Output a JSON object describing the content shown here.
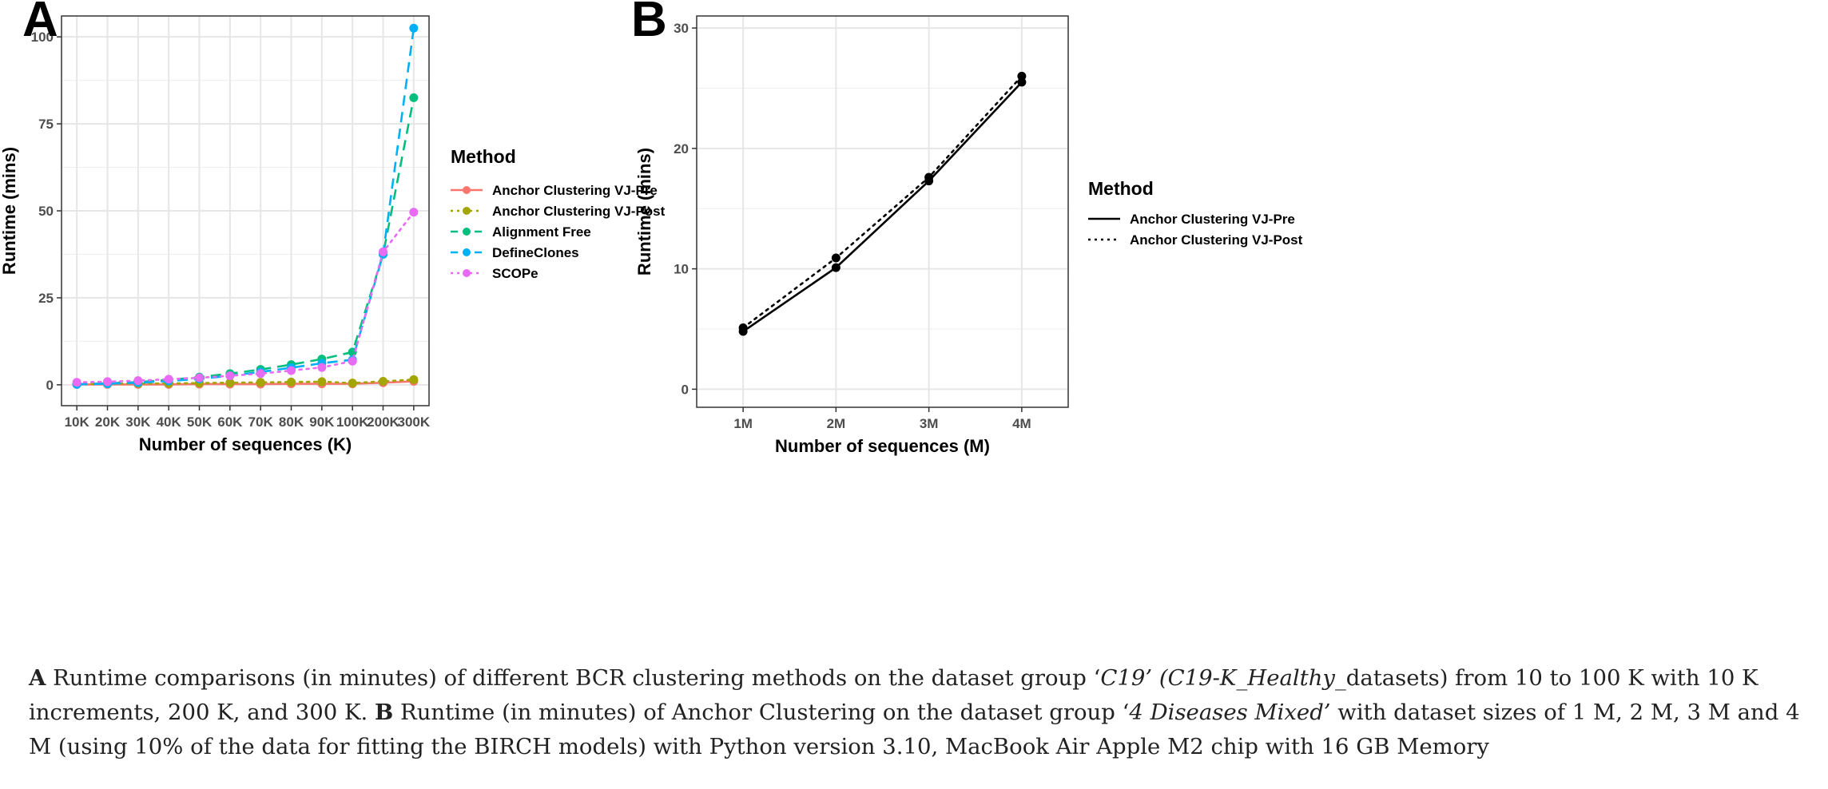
{
  "chart_data": [
    {
      "panel": "A",
      "type": "line",
      "xlabel": "Number of sequences (K)",
      "ylabel": "Runtime (mins)",
      "categories": [
        "10K",
        "20K",
        "30K",
        "40K",
        "50K",
        "60K",
        "70K",
        "80K",
        "90K",
        "100K",
        "200K",
        "300K"
      ],
      "ylim": [
        -6,
        106
      ],
      "yticks": [
        0,
        25,
        50,
        75,
        100
      ],
      "grid": true,
      "legend": {
        "title": "Method",
        "position": "right"
      },
      "series": [
        {
          "name": "Anchor Clustering VJ-Pre",
          "color": "#F8766D",
          "dash": "solid",
          "values": [
            0.1,
            0.1,
            0.1,
            0.1,
            0.2,
            0.2,
            0.2,
            0.3,
            0.3,
            0.3,
            0.6,
            1.0
          ]
        },
        {
          "name": "Anchor Clustering VJ-Post",
          "color": "#A3A500",
          "dash": "dotted",
          "values": [
            0.2,
            0.3,
            0.4,
            0.4,
            0.5,
            0.6,
            0.7,
            0.8,
            0.9,
            0.5,
            1.0,
            1.5
          ]
        },
        {
          "name": "Alignment Free",
          "color": "#00BF7D",
          "dash": "dashed",
          "values": [
            0.2,
            0.4,
            0.8,
            1.4,
            2.2,
            3.2,
            4.4,
            5.8,
            7.4,
            9.4,
            37.5,
            82.5
          ]
        },
        {
          "name": "DefineClones",
          "color": "#00B0F6",
          "dash": "dashed",
          "values": [
            0.1,
            0.3,
            0.6,
            1.1,
            1.7,
            2.6,
            3.7,
            4.9,
            6.2,
            7.2,
            37.5,
            102.5
          ]
        },
        {
          "name": "SCOPe",
          "color": "#E76BF3",
          "dash": "dotted",
          "values": [
            0.7,
            0.9,
            1.2,
            1.6,
            2.0,
            2.6,
            3.2,
            4.1,
            5.0,
            6.8,
            38.2,
            49.6
          ]
        }
      ]
    },
    {
      "panel": "B",
      "type": "line",
      "xlabel": "Number of sequences (M)",
      "ylabel": "Runtime (mins)",
      "categories": [
        "1M",
        "2M",
        "3M",
        "4M"
      ],
      "ylim": [
        -1.5,
        31
      ],
      "yticks": [
        0,
        10,
        20,
        30
      ],
      "grid": true,
      "legend": {
        "title": "Method",
        "position": "right"
      },
      "series": [
        {
          "name": "Anchor Clustering VJ-Pre",
          "color": "#000000",
          "dash": "solid",
          "values": [
            4.8,
            10.1,
            17.3,
            25.5
          ]
        },
        {
          "name": "Anchor Clustering VJ-Post",
          "color": "#000000",
          "dash": "dotted",
          "values": [
            5.1,
            10.9,
            17.6,
            26.0
          ]
        }
      ]
    }
  ],
  "caption": {
    "part_a_label": "A",
    "part_a_pre": " Runtime comparisons (in minutes) of different BCR clustering methods on the dataset group ‘",
    "part_a_italic": "C19’ (C19-K_Healthy_",
    "part_a_post": "datasets) from 10 to 100 K with 10 K increments, 200 K, and 300 K. ",
    "part_b_label": "B",
    "part_b_pre": " Runtime (in minutes) of Anchor Clustering on the dataset group ‘",
    "part_b_italic": "4 Diseases Mixed’",
    "part_b_post": " with dataset sizes of 1 M, 2 M, 3 M and 4 M (using 10% of the data for fitting the BIRCH models) with Python version 3.10, MacBook Air Apple M2 chip with 16 GB Memory"
  }
}
